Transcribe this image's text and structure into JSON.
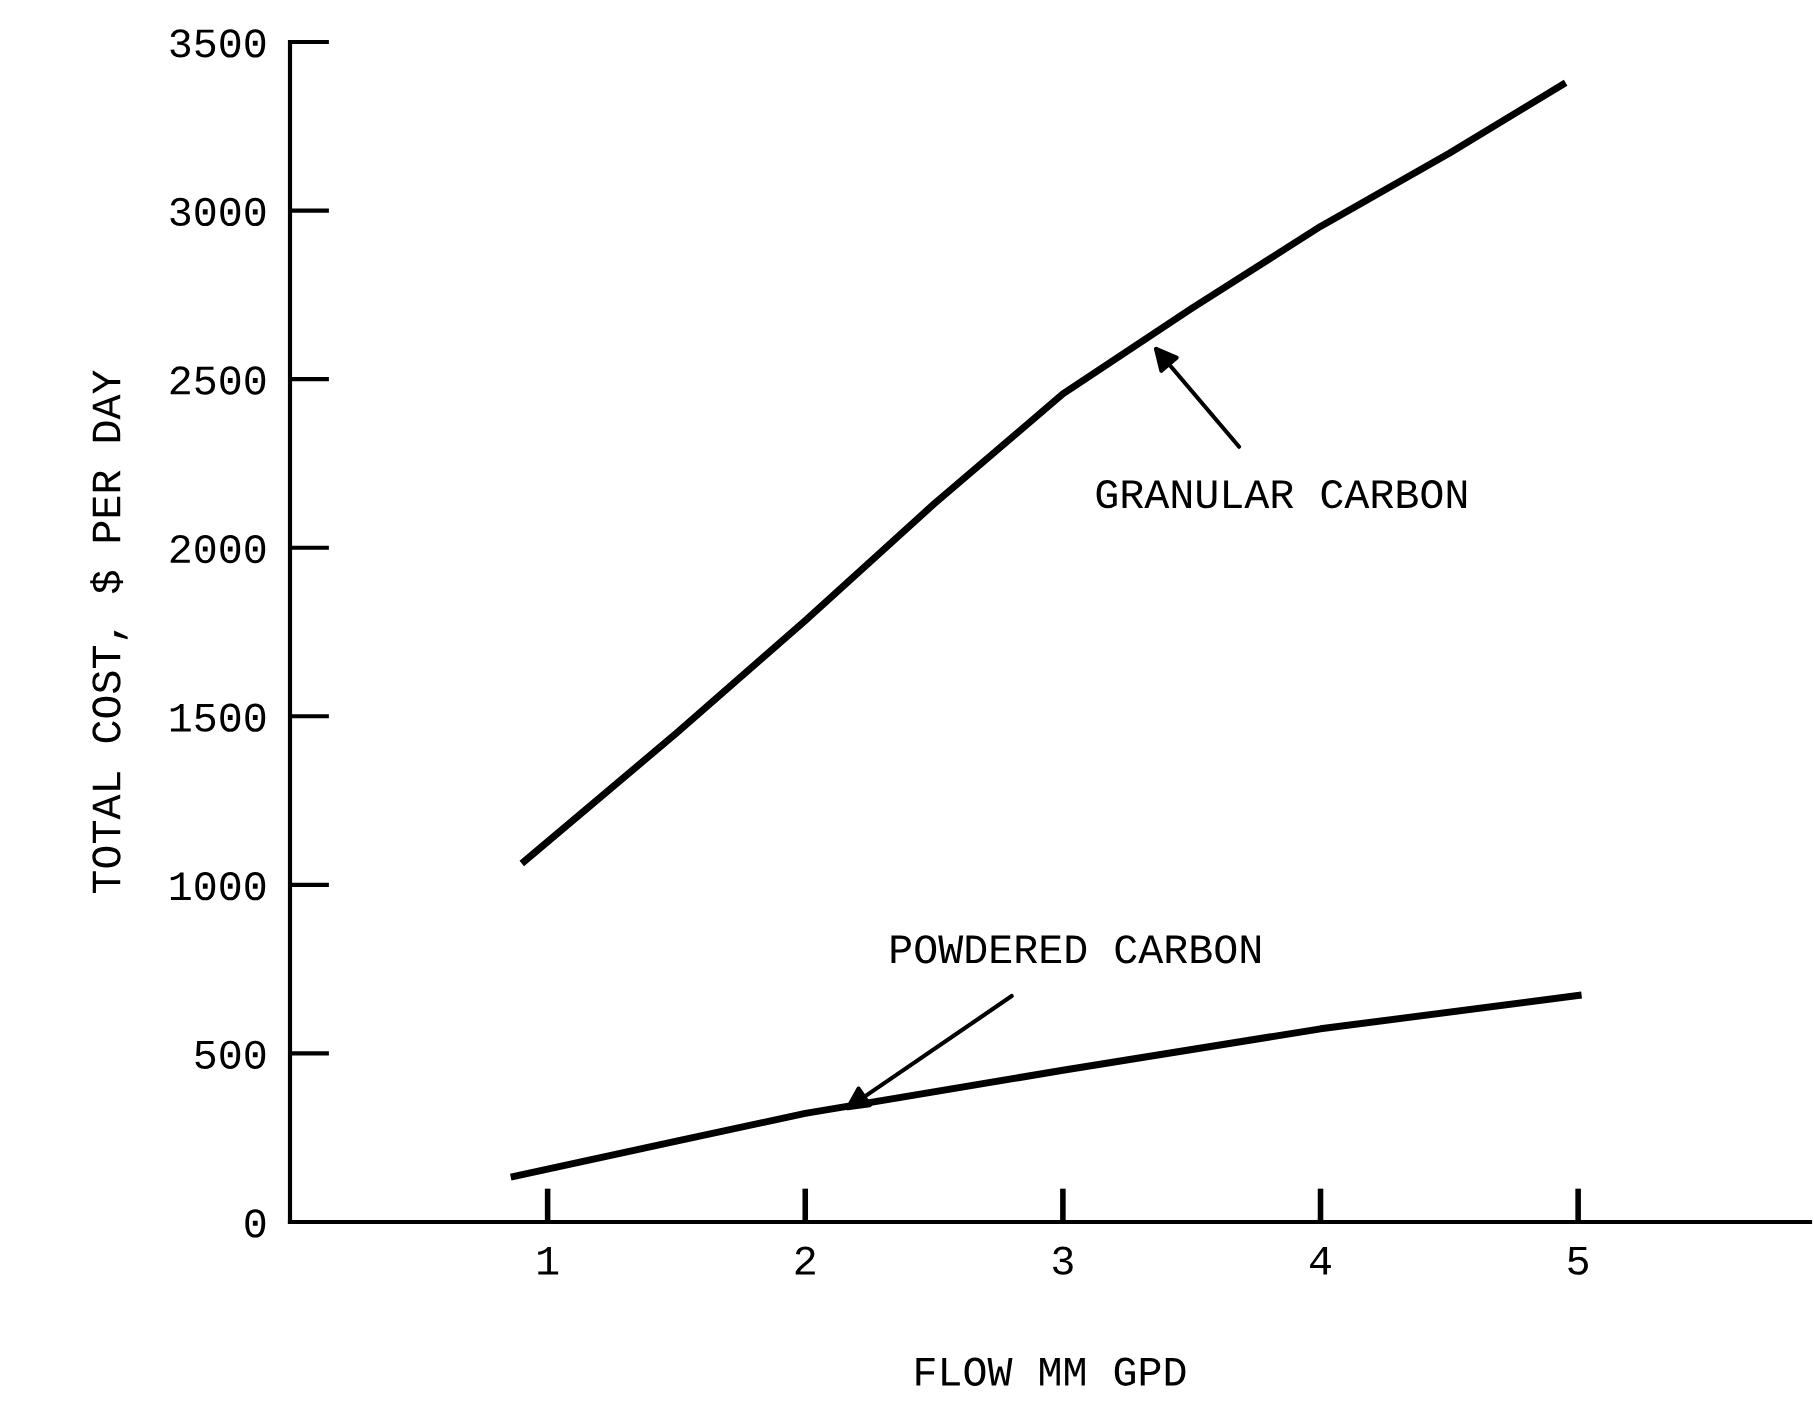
{
  "chart_data": {
    "type": "line",
    "xlabel": "FLOW MM GPD",
    "ylabel": "TOTAL COST, $ PER DAY",
    "xlim": [
      0,
      5.9
    ],
    "xticks": [
      1,
      2,
      3,
      4,
      5
    ],
    "ylim": [
      0,
      3500
    ],
    "yticks": [
      0,
      500,
      1000,
      1500,
      2000,
      2500,
      3000,
      3500
    ],
    "grid": false,
    "legend": false,
    "marker": "none",
    "line_style": "solid",
    "series": [
      {
        "color": "#000000",
        "x": [
          0.91,
          1.5,
          2,
          2.5,
          3,
          3.5,
          4,
          4.5,
          4.94
        ],
        "values": [
          1070,
          1450,
          1784,
          2130,
          2456,
          2710,
          2953,
          3170,
          3374
        ]
      },
      {
        "color": "#000000",
        "x": [
          0.87,
          1.5,
          2,
          3,
          4,
          5
        ],
        "values": [
          135,
          240,
          322,
          450,
          573,
          672
        ]
      }
    ],
    "annotations": [
      {
        "text": "GRANULAR CARBON",
        "x": 3.35,
        "y": 2600
      },
      {
        "text": "POWDERED CARBON",
        "x": 2.15,
        "y": 330
      }
    ]
  }
}
